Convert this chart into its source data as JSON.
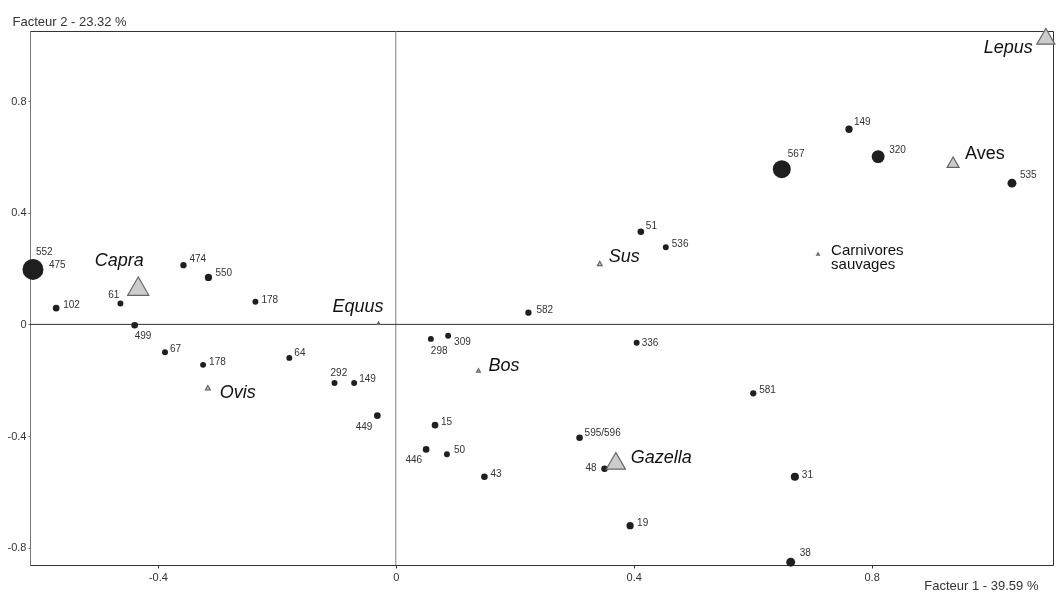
{
  "chart_data": {
    "type": "bubble",
    "xlabel": "Facteur 1 - 39.59 %",
    "ylabel": "Facteur 2 - 23.32 %",
    "xlim": [
      -0.615,
      1.105
    ],
    "ylim": [
      -0.862,
      1.051
    ],
    "xticks": [
      -0.4,
      0,
      0.4,
      0.8
    ],
    "yticks": [
      -0.8,
      -0.4,
      0,
      0.4,
      0.8
    ],
    "ref_lines": [
      {
        "axis": "x",
        "value": 0,
        "color": "#808080"
      },
      {
        "axis": "y",
        "value": 0,
        "color": "#333333"
      }
    ],
    "series": [
      {
        "marker": "circle",
        "color": "#1f1f1f",
        "x": [
          -0.61,
          -0.357,
          -0.315,
          -0.571,
          -0.463,
          -0.236,
          -0.439,
          -0.388,
          -0.324,
          -0.179,
          -0.103,
          -0.07,
          -0.031,
          0.412,
          0.454,
          0.223,
          0.059,
          0.088,
          0.405,
          0.066,
          0.309,
          0.051,
          0.086,
          0.149,
          0.351,
          0.394,
          0.649,
          0.762,
          0.811,
          1.036,
          0.601,
          0.671,
          0.664
        ],
        "values": [
          0.197,
          0.212,
          0.168,
          0.058,
          0.075,
          0.081,
          -0.003,
          -0.1,
          -0.145,
          -0.12,
          -0.21,
          -0.21,
          -0.327,
          0.332,
          0.276,
          0.042,
          -0.052,
          -0.041,
          -0.066,
          -0.361,
          -0.406,
          -0.448,
          -0.465,
          -0.546,
          -0.517,
          -0.721,
          0.556,
          0.699,
          0.601,
          0.506,
          -0.247,
          -0.546,
          -0.852
        ],
        "sizes": [
          1,
          0.09,
          0.12,
          0.1,
          0.08,
          0.08,
          0.1,
          0.08,
          0.08,
          0.08,
          0.08,
          0.08,
          0.1,
          0.1,
          0.08,
          0.09,
          0.08,
          0.08,
          0.08,
          0.1,
          0.1,
          0.1,
          0.08,
          0.1,
          0.1,
          0.12,
          0.73,
          0.12,
          0.38,
          0.18,
          0.09,
          0.15,
          0.18
        ]
      },
      {
        "marker": "triangle",
        "color": "#cccccc",
        "x": [
          -0.433,
          -0.029,
          -0.316,
          0.343,
          0.139,
          0.37,
          0.937,
          0.71,
          1.093
        ],
        "values": [
          0.137,
          0.004,
          -0.227,
          0.218,
          -0.165,
          -0.489,
          0.581,
          0.252,
          1.032
        ],
        "sizes": [
          0.56,
          0.01,
          0.03,
          0.03,
          0.02,
          0.46,
          0.18,
          0.01,
          0.41
        ]
      }
    ],
    "annotations": [
      {
        "text": "552",
        "x": -0.61,
        "y": 0.197
      },
      {
        "text": "475",
        "x": -0.61,
        "y": 0.197
      },
      {
        "text": "474",
        "x": -0.357,
        "y": 0.212
      },
      {
        "text": "550",
        "x": -0.315,
        "y": 0.168
      },
      {
        "text": "102",
        "x": -0.571,
        "y": 0.058
      },
      {
        "text": "61",
        "x": -0.463,
        "y": 0.075
      },
      {
        "text": "178",
        "x": -0.236,
        "y": 0.081
      },
      {
        "text": "499",
        "x": -0.439,
        "y": -0.003
      },
      {
        "text": "67",
        "x": -0.388,
        "y": -0.1
      },
      {
        "text": "178",
        "x": -0.324,
        "y": -0.145
      },
      {
        "text": "64",
        "x": -0.179,
        "y": -0.12
      },
      {
        "text": "292",
        "x": -0.103,
        "y": -0.21
      },
      {
        "text": "149",
        "x": -0.07,
        "y": -0.21
      },
      {
        "text": "449",
        "x": -0.031,
        "y": -0.327
      },
      {
        "text": "51",
        "x": 0.412,
        "y": 0.332
      },
      {
        "text": "536",
        "x": 0.454,
        "y": 0.276
      },
      {
        "text": "582",
        "x": 0.223,
        "y": 0.042
      },
      {
        "text": "298",
        "x": 0.059,
        "y": -0.052
      },
      {
        "text": "309",
        "x": 0.088,
        "y": -0.041
      },
      {
        "text": "336",
        "x": 0.405,
        "y": -0.066
      },
      {
        "text": "15",
        "x": 0.066,
        "y": -0.361
      },
      {
        "text": "595/596",
        "x": 0.309,
        "y": -0.406
      },
      {
        "text": "446",
        "x": 0.051,
        "y": -0.448
      },
      {
        "text": "50",
        "x": 0.086,
        "y": -0.465
      },
      {
        "text": "43",
        "x": 0.149,
        "y": -0.546
      },
      {
        "text": "48",
        "x": 0.351,
        "y": -0.517
      },
      {
        "text": "19",
        "x": 0.394,
        "y": -0.721
      },
      {
        "text": "567",
        "x": 0.649,
        "y": 0.556
      },
      {
        "text": "149",
        "x": 0.762,
        "y": 0.699
      },
      {
        "text": "320",
        "x": 0.811,
        "y": 0.601
      },
      {
        "text": "535",
        "x": 1.036,
        "y": 0.506
      },
      {
        "text": "581",
        "x": 0.601,
        "y": -0.247
      },
      {
        "text": "31",
        "x": 0.671,
        "y": -0.546
      },
      {
        "text": "38",
        "x": 0.664,
        "y": -0.852
      },
      {
        "text": "Capra",
        "x": -0.433,
        "y": 0.137
      },
      {
        "text": "Equus",
        "x": -0.029,
        "y": 0.004
      },
      {
        "text": "Ovis",
        "x": -0.316,
        "y": -0.227
      },
      {
        "text": "Sus",
        "x": 0.343,
        "y": 0.218
      },
      {
        "text": "Bos",
        "x": 0.139,
        "y": -0.165
      },
      {
        "text": "Gazella",
        "x": 0.37,
        "y": -0.489
      },
      {
        "text": "Aves",
        "x": 0.937,
        "y": 0.581
      },
      {
        "text": "Carnivores sauvages",
        "x": 0.71,
        "y": 0.252
      },
      {
        "text": "Lepus",
        "x": 1.093,
        "y": 1.032
      }
    ]
  }
}
